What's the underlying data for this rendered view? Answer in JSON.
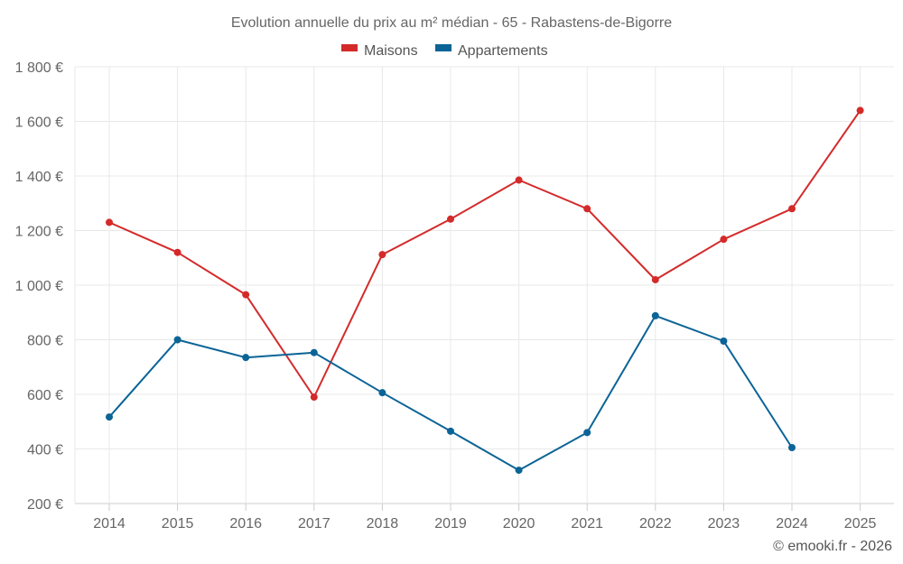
{
  "chart_data": {
    "type": "line",
    "title": "Evolution annuelle du prix au m² médian - 65 - Rabastens-de-Bigorre",
    "x": [
      "2014",
      "2015",
      "2016",
      "2017",
      "2018",
      "2019",
      "2020",
      "2021",
      "2022",
      "2023",
      "2024",
      "2025"
    ],
    "y_ticks": [
      200,
      400,
      600,
      800,
      1000,
      1200,
      1400,
      1600,
      1800
    ],
    "y_tick_labels": [
      "200 €",
      "400 €",
      "600 €",
      "800 €",
      "1 000 €",
      "1 200 €",
      "1 400 €",
      "1 600 €",
      "1 800 €"
    ],
    "ylim": [
      200,
      1800
    ],
    "xlabel": "",
    "ylabel": "",
    "grid": true,
    "legend_position": "top-center",
    "series": [
      {
        "name": "Maisons",
        "color": "#d42a2a",
        "values": [
          1230,
          1120,
          965,
          590,
          1112,
          1242,
          1385,
          1280,
          1020,
          1168,
          1280,
          1640
        ]
      },
      {
        "name": "Appartements",
        "color": "#0b6496",
        "values": [
          517,
          800,
          735,
          753,
          606,
          465,
          322,
          460,
          888,
          795,
          405,
          null
        ]
      }
    ]
  },
  "credit": "© emooki.fr - 2026"
}
